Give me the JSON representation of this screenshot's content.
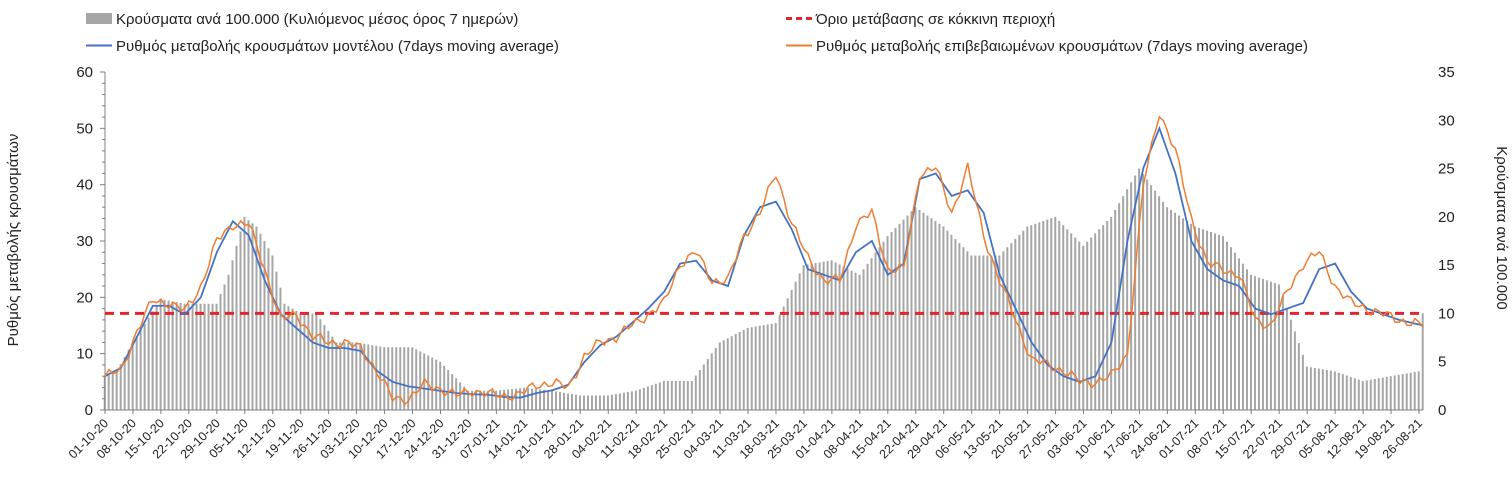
{
  "chart_data": {
    "type": "bar+line",
    "title": "",
    "legend": {
      "items": [
        {
          "label": "Κρούσματα ανά 100.000 (Κυλιόμενος μέσος όρος 7 ημερών)",
          "kind": "bar",
          "color": "#a6a6a6"
        },
        {
          "label": "Όριο μετάβασης σε κόκκινη περιοχή",
          "kind": "dashed-line",
          "color": "#e3242b"
        },
        {
          "label": "Ρυθμός μεταβολής κρουσμάτων μοντέλου (7days moving average)",
          "kind": "line",
          "color": "#4472c4"
        },
        {
          "label": "Ρυθμός μεταβολής επιβεβαιωμένων κρουσμάτων (7days moving average)",
          "kind": "line",
          "color": "#ed7d31"
        }
      ],
      "placement": "top"
    },
    "ylabel_left": "Ρυθμός μεταβολής κρουσμάτων",
    "ylabel_right": "Κρούσματα ανά 100.000",
    "ylim_left": [
      0,
      60
    ],
    "yticks_left": [
      0,
      10,
      20,
      30,
      40,
      50,
      60
    ],
    "ylim_right": [
      0,
      35
    ],
    "yticks_right": [
      0,
      5,
      10,
      15,
      20,
      25,
      30,
      35
    ],
    "threshold_right": 10,
    "x_start": "2020-10-01",
    "x_end": "2021-08-31",
    "x_tick_labels": [
      "01-10-20",
      "08-10-20",
      "15-10-20",
      "22-10-20",
      "29-10-20",
      "05-11-20",
      "12-11-20",
      "19-11-20",
      "26-11-20",
      "03-12-20",
      "10-12-20",
      "17-12-20",
      "24-12-20",
      "31-12-20",
      "07-01-21",
      "14-01-21",
      "21-01-21",
      "28-01-21",
      "04-02-21",
      "11-02-21",
      "18-02-21",
      "25-02-21",
      "04-03-21",
      "11-03-21",
      "18-03-21",
      "25-03-21",
      "01-04-21",
      "08-04-21",
      "15-04-21",
      "22-04-21",
      "29-04-21",
      "06-05-21",
      "13-05-21",
      "20-05-21",
      "27-05-21",
      "03-06-21",
      "10-06-21",
      "17-06-21",
      "24-06-21",
      "01-07-21",
      "08-07-21",
      "15-07-21",
      "22-07-21",
      "29-07-21",
      "05-08-21",
      "12-08-21",
      "19-08-21",
      "26-08-21"
    ],
    "series": [
      {
        "name": "Κρούσματα ανά 100.000 (Κυλιόμενος μέσος όρος 7 ημερών)",
        "axis": "right",
        "type": "bar",
        "keypoints": {
          "day": [
            0,
            3,
            7,
            14,
            20,
            28,
            31,
            35,
            38,
            42,
            45,
            49,
            53,
            58,
            63,
            70,
            77,
            84,
            91,
            98,
            105,
            112,
            119,
            126,
            133,
            140,
            147,
            154,
            161,
            168,
            175,
            182,
            189,
            196,
            203,
            210,
            217,
            224,
            231,
            238,
            245,
            252,
            259,
            266,
            273,
            280,
            287,
            294,
            301,
            308,
            315,
            322,
            329,
            330
          ],
          "value": [
            3.5,
            4,
            7,
            11.5,
            11,
            11,
            14,
            20,
            19,
            16,
            11,
            10,
            10,
            7,
            7,
            6.5,
            6.5,
            5,
            2,
            2,
            2.3,
            2,
            1.5,
            1.5,
            2,
            3,
            3,
            7,
            8.5,
            9,
            15,
            15.5,
            14,
            18,
            21,
            19,
            16,
            16,
            19,
            20,
            17,
            20,
            25,
            21,
            19,
            18,
            14,
            13,
            4.5,
            4,
            3,
            3.5,
            4,
            10
          ]
        }
      },
      {
        "name": "Ρυθμός μεταβολής κρουσμάτων μοντέλου (7days moving average)",
        "axis": "left",
        "type": "line",
        "keypoints": {
          "day": [
            0,
            4,
            8,
            12,
            16,
            20,
            24,
            28,
            32,
            36,
            40,
            44,
            48,
            52,
            56,
            60,
            64,
            68,
            72,
            76,
            80,
            84,
            88,
            92,
            96,
            100,
            104,
            108,
            112,
            116,
            120,
            124,
            128,
            132,
            136,
            140,
            144,
            148,
            152,
            156,
            160,
            164,
            168,
            172,
            176,
            180,
            184,
            188,
            192,
            196,
            200,
            204,
            208,
            212,
            216,
            220,
            224,
            228,
            232,
            236,
            240,
            244,
            248,
            252,
            256,
            260,
            264,
            268,
            272,
            276,
            280,
            284,
            288,
            292,
            296,
            300,
            304,
            308,
            312,
            316,
            320,
            324,
            330
          ],
          "value": [
            6,
            7.5,
            13,
            18.5,
            18.5,
            17,
            20,
            28,
            33.5,
            31,
            23,
            17,
            14.5,
            12,
            11,
            11,
            10.5,
            7,
            5,
            4.2,
            3.8,
            3.4,
            3,
            2.8,
            2.7,
            2.3,
            2.2,
            3,
            3.5,
            4.5,
            8.5,
            11.5,
            13,
            15.5,
            18,
            21,
            26,
            26.5,
            23,
            22,
            31,
            36,
            37,
            32,
            25,
            24,
            23,
            28,
            30,
            24,
            26,
            41,
            42,
            38,
            39,
            35,
            24,
            18,
            12,
            8,
            6,
            5,
            6,
            12,
            30,
            43,
            50,
            42,
            30,
            25,
            23,
            22,
            18,
            17,
            18,
            19,
            25,
            26,
            21,
            18,
            17,
            16,
            15
          ]
        }
      },
      {
        "name": "Ρυθμός μεταβολής επιβεβαιωμένων κρουσμάτων (7days moving average)",
        "axis": "left",
        "type": "line",
        "keypoints": {
          "day": [
            0,
            4,
            8,
            12,
            16,
            20,
            24,
            28,
            32,
            36,
            40,
            44,
            48,
            52,
            56,
            60,
            64,
            68,
            72,
            76,
            80,
            84,
            88,
            92,
            96,
            100,
            104,
            108,
            112,
            116,
            120,
            124,
            128,
            132,
            136,
            140,
            144,
            148,
            152,
            156,
            160,
            164,
            168,
            172,
            176,
            180,
            184,
            188,
            192,
            196,
            200,
            204,
            208,
            212,
            216,
            220,
            224,
            228,
            232,
            236,
            240,
            244,
            248,
            252,
            256,
            260,
            264,
            268,
            272,
            276,
            280,
            284,
            288,
            292,
            296,
            300,
            304,
            308,
            312,
            316,
            320,
            324,
            330
          ],
          "value": [
            6,
            7,
            14,
            19.5,
            19,
            17.5,
            22,
            30,
            33,
            33,
            25,
            16,
            17,
            13,
            12,
            12,
            11,
            7,
            2,
            2,
            4.5,
            3.8,
            2.5,
            3.5,
            2.8,
            2.5,
            2.8,
            4.5,
            4.8,
            4,
            9.5,
            12,
            13,
            15,
            17,
            19,
            26,
            28,
            23,
            23,
            31,
            35,
            42,
            33,
            27,
            23,
            23,
            33,
            35,
            25,
            25,
            42,
            43,
            35,
            43,
            31,
            23,
            16,
            9,
            8,
            7,
            5,
            5,
            6,
            10,
            40,
            53,
            46,
            34,
            26,
            25,
            24,
            16,
            15,
            21,
            26,
            28,
            22,
            19,
            18,
            17,
            16,
            15
          ]
        }
      }
    ]
  }
}
